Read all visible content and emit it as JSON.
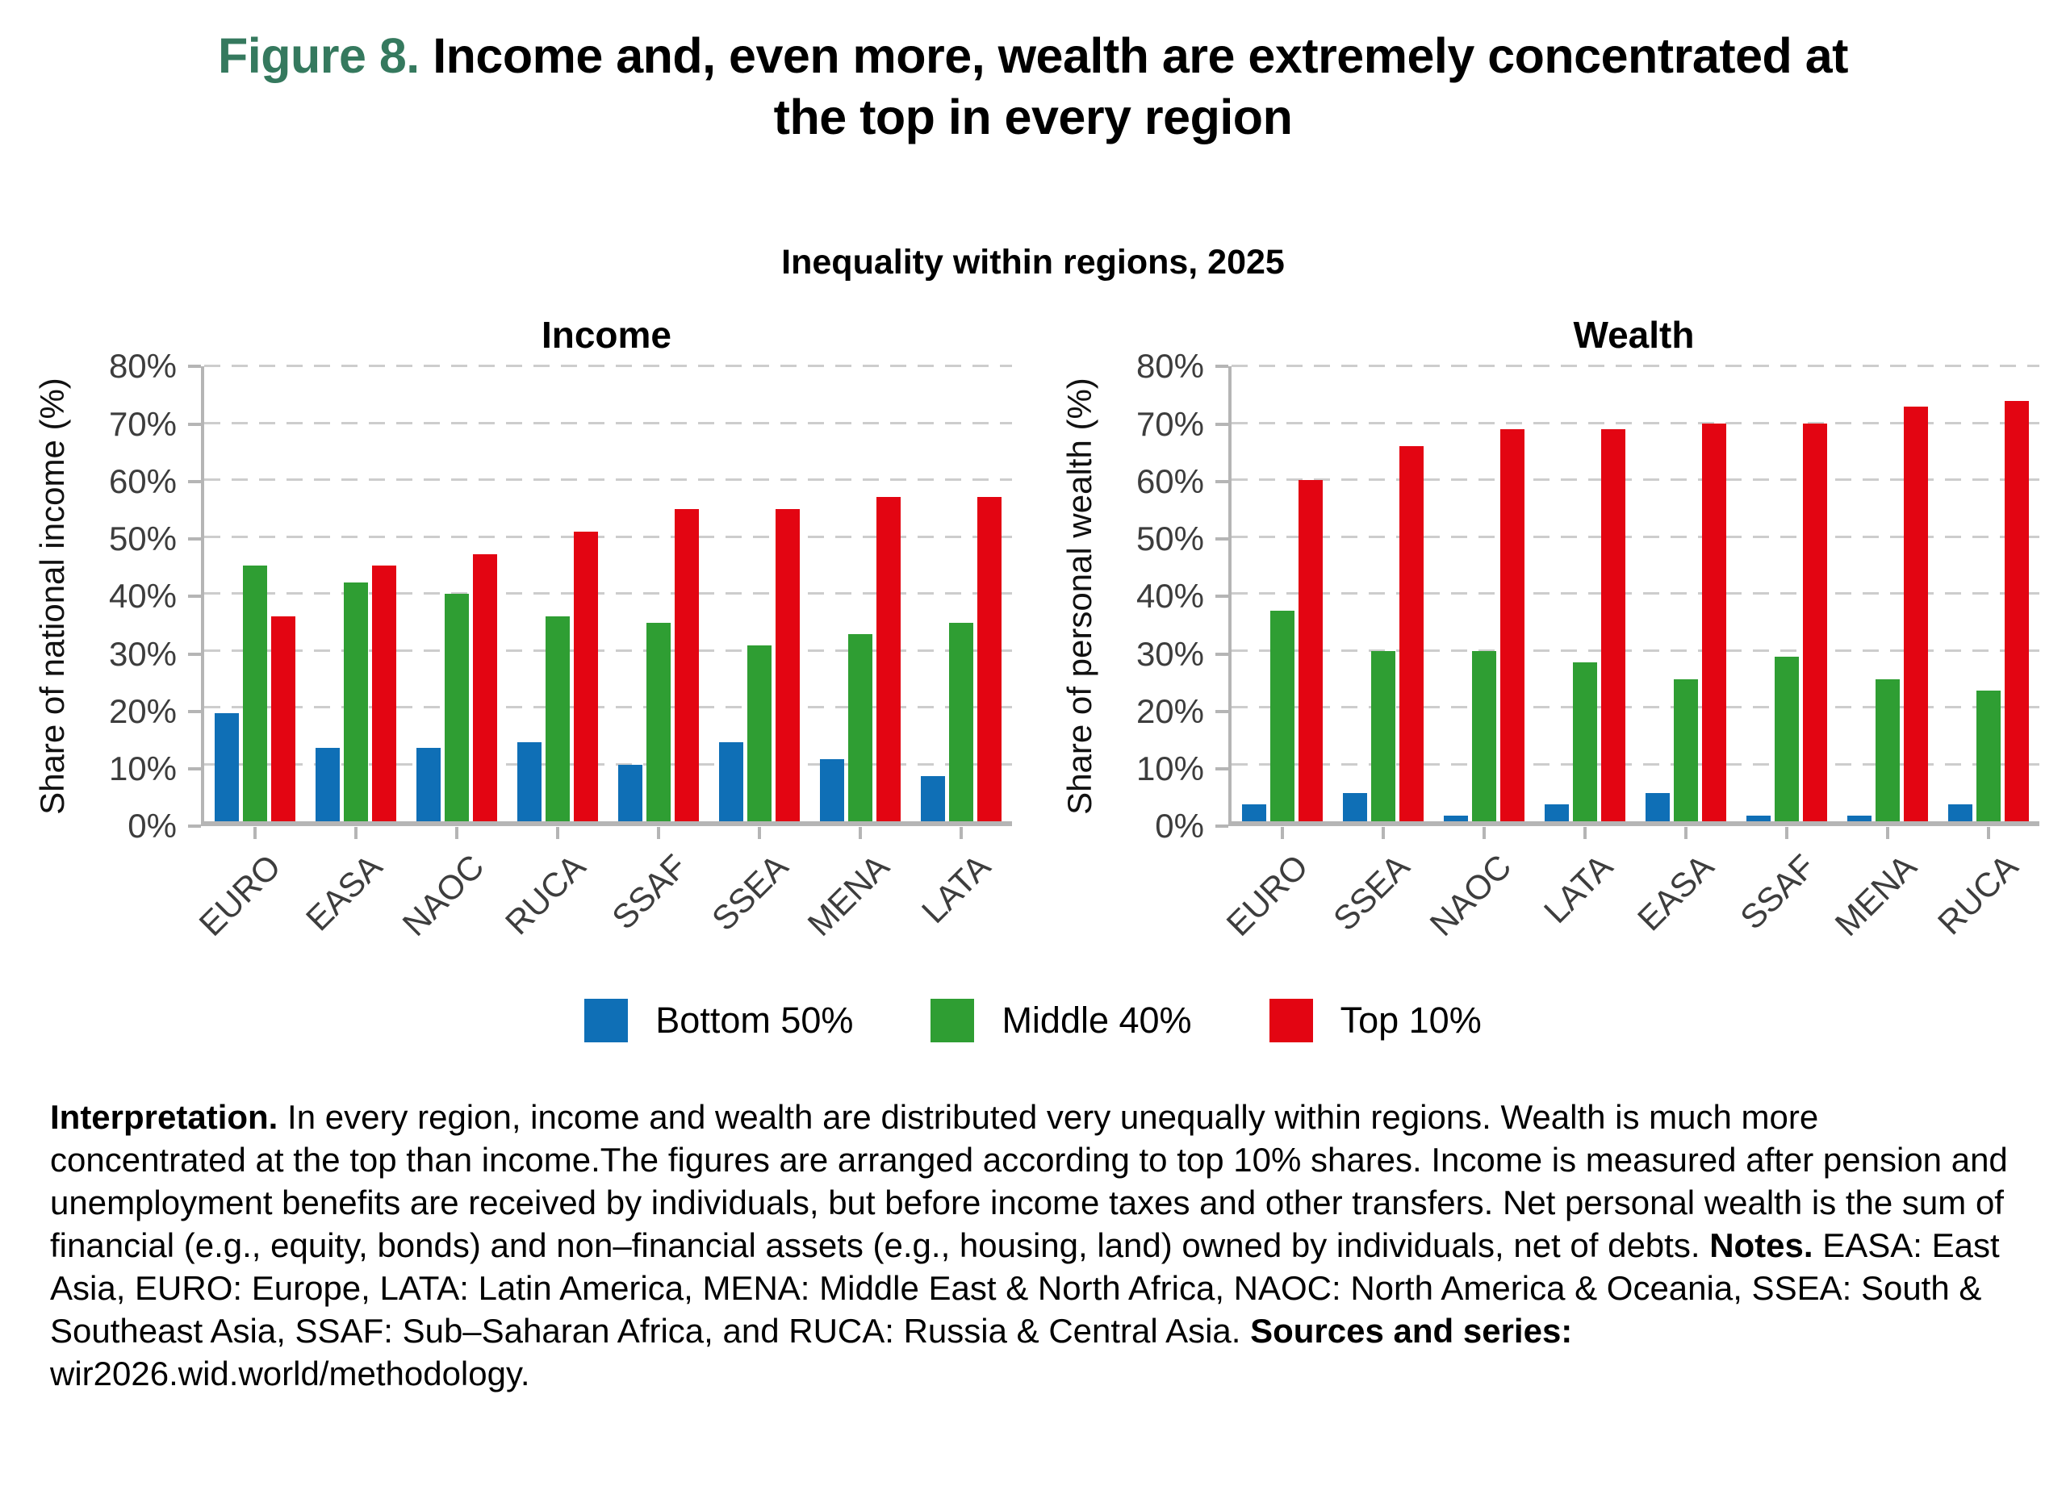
{
  "figure": {
    "label": "Figure 8.",
    "title_line1": "Income and, even more, wealth are extremely concentrated at",
    "title_line2": "the top in every region",
    "subtitle": "Inequality within regions, 2025"
  },
  "colors": {
    "figure_label_green": "#35795e",
    "series": [
      "#0f6fb6",
      "#2f9e33",
      "#e30512"
    ],
    "gridline": "#cdcdcd",
    "axis": "#b5b5b5"
  },
  "legend": [
    {
      "label": "Bottom 50%"
    },
    {
      "label": "Middle 40%"
    },
    {
      "label": "Top 10%"
    }
  ],
  "chart_data": [
    {
      "type": "bar",
      "title": "Income",
      "ylabel": "Share of national income (%)",
      "ylim": [
        0,
        80
      ],
      "ytick_step": 10,
      "grid": true,
      "categories": [
        "EURO",
        "EASA",
        "NAOC",
        "RUCA",
        "SSAF",
        "SSEA",
        "MENA",
        "LATA"
      ],
      "series": [
        {
          "name": "Bottom 50%",
          "values": [
            19,
            13,
            13,
            14,
            10,
            14,
            11,
            8
          ]
        },
        {
          "name": "Middle 40%",
          "values": [
            45,
            42,
            40,
            36,
            35,
            31,
            33,
            35
          ]
        },
        {
          "name": "Top 10%",
          "values": [
            36,
            45,
            47,
            51,
            55,
            55,
            57,
            57
          ]
        }
      ]
    },
    {
      "type": "bar",
      "title": "Wealth",
      "ylabel": "Share of personal wealth (%)",
      "ylim": [
        0,
        80
      ],
      "ytick_step": 10,
      "grid": true,
      "categories": [
        "EURO",
        "SSEA",
        "NAOC",
        "LATA",
        "EASA",
        "SSAF",
        "MENA",
        "RUCA"
      ],
      "series": [
        {
          "name": "Bottom 50%",
          "values": [
            3,
            5,
            1,
            3,
            5,
            1,
            1,
            3
          ]
        },
        {
          "name": "Middle 40%",
          "values": [
            37,
            30,
            30,
            28,
            25,
            29,
            25,
            23
          ]
        },
        {
          "name": "Top 10%",
          "values": [
            60,
            66,
            69,
            69,
            70,
            70,
            73,
            74
          ]
        }
      ]
    }
  ],
  "caption": {
    "interpretation_label": "Interpretation.",
    "interpretation_text": " In every region, income and wealth are distributed very unequally within regions. Wealth is much more concentrated at the top than income.The figures are arranged according to top 10% shares. Income is measured after pension and unemployment benefits are received by individuals, but before income taxes and other transfers. Net personal wealth is the sum of financial (e.g., equity, bonds) and non–financial assets (e.g., housing, land) owned by individuals, net of debts. ",
    "notes_label": "Notes.",
    "notes_text": " EASA: East Asia, EURO: Europe, LATA: Latin America, MENA: Middle East & North Africa, NAOC: North America & Oceania, SSEA: South & Southeast Asia, SSAF: Sub–Saharan Africa, and RUCA: Russia & Central Asia. ",
    "sources_label": "Sources and series:",
    "sources_text": " wir2026.wid.world/methodology."
  }
}
